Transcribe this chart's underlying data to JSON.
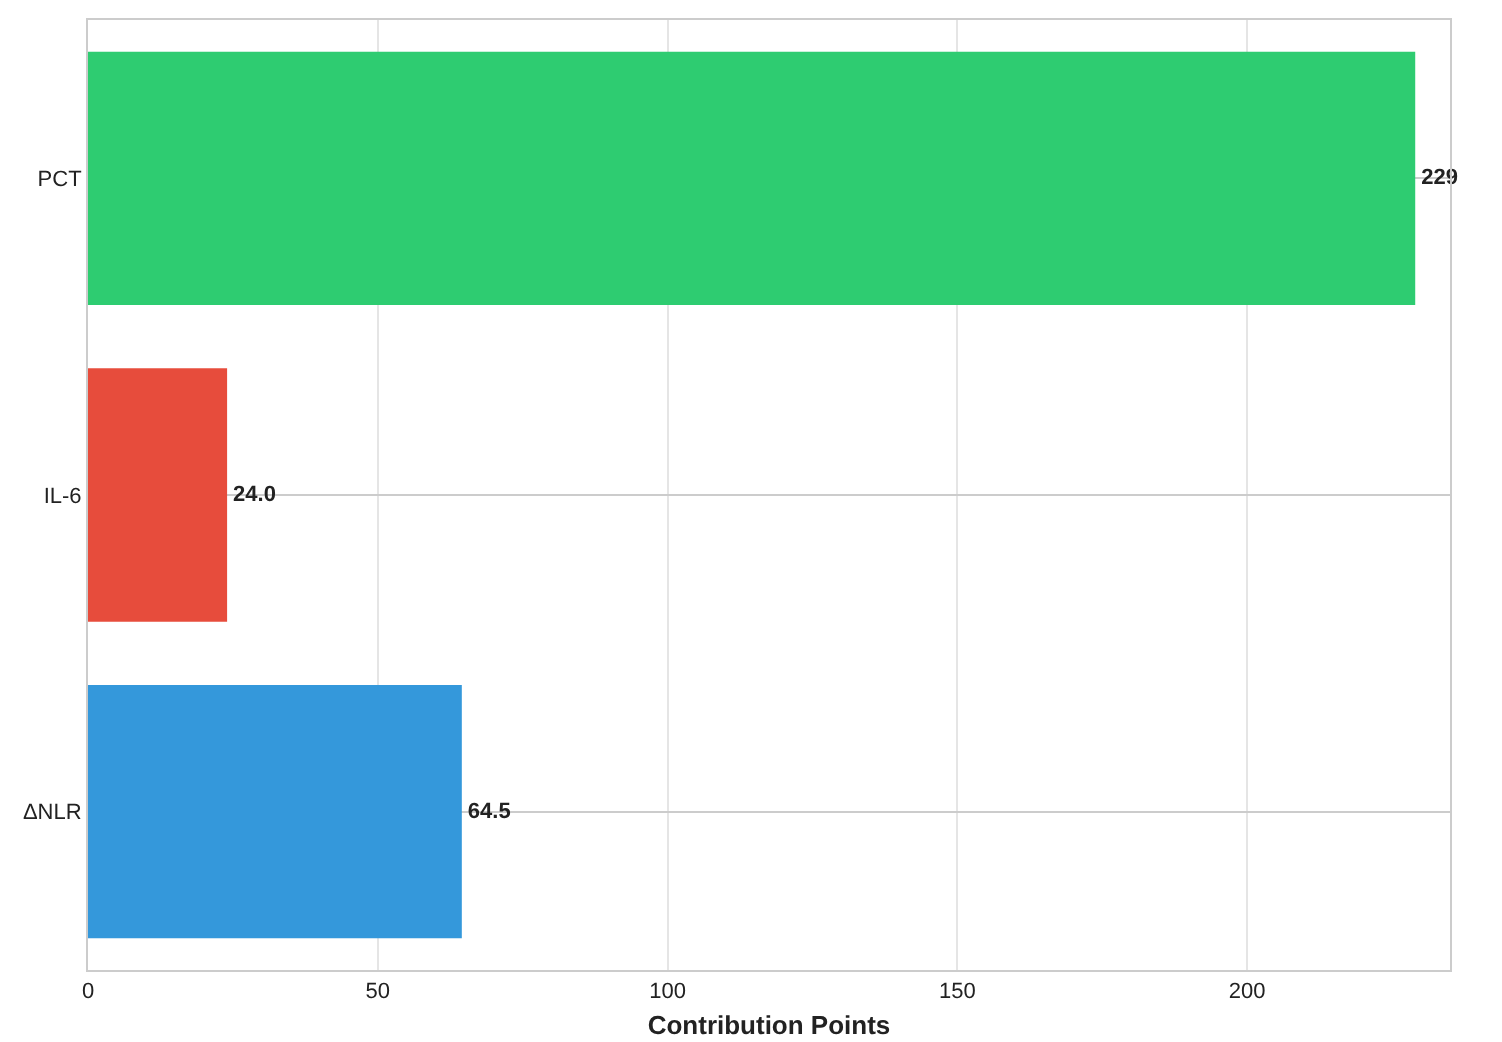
{
  "chart_data": {
    "type": "bar",
    "orientation": "horizontal",
    "xlabel": "Contribution Points",
    "categories": [
      "PCT",
      "IL-6",
      "ΔNLR"
    ],
    "values": [
      229,
      24.0,
      64.5
    ],
    "colors": [
      "#2ecc71",
      "#e74c3c",
      "#3498db"
    ],
    "value_labels": [
      "229",
      "24.0",
      "64.5"
    ],
    "xlim": [
      0,
      235
    ],
    "xticks": [
      0,
      50,
      100,
      150,
      200
    ],
    "grid": true
  }
}
